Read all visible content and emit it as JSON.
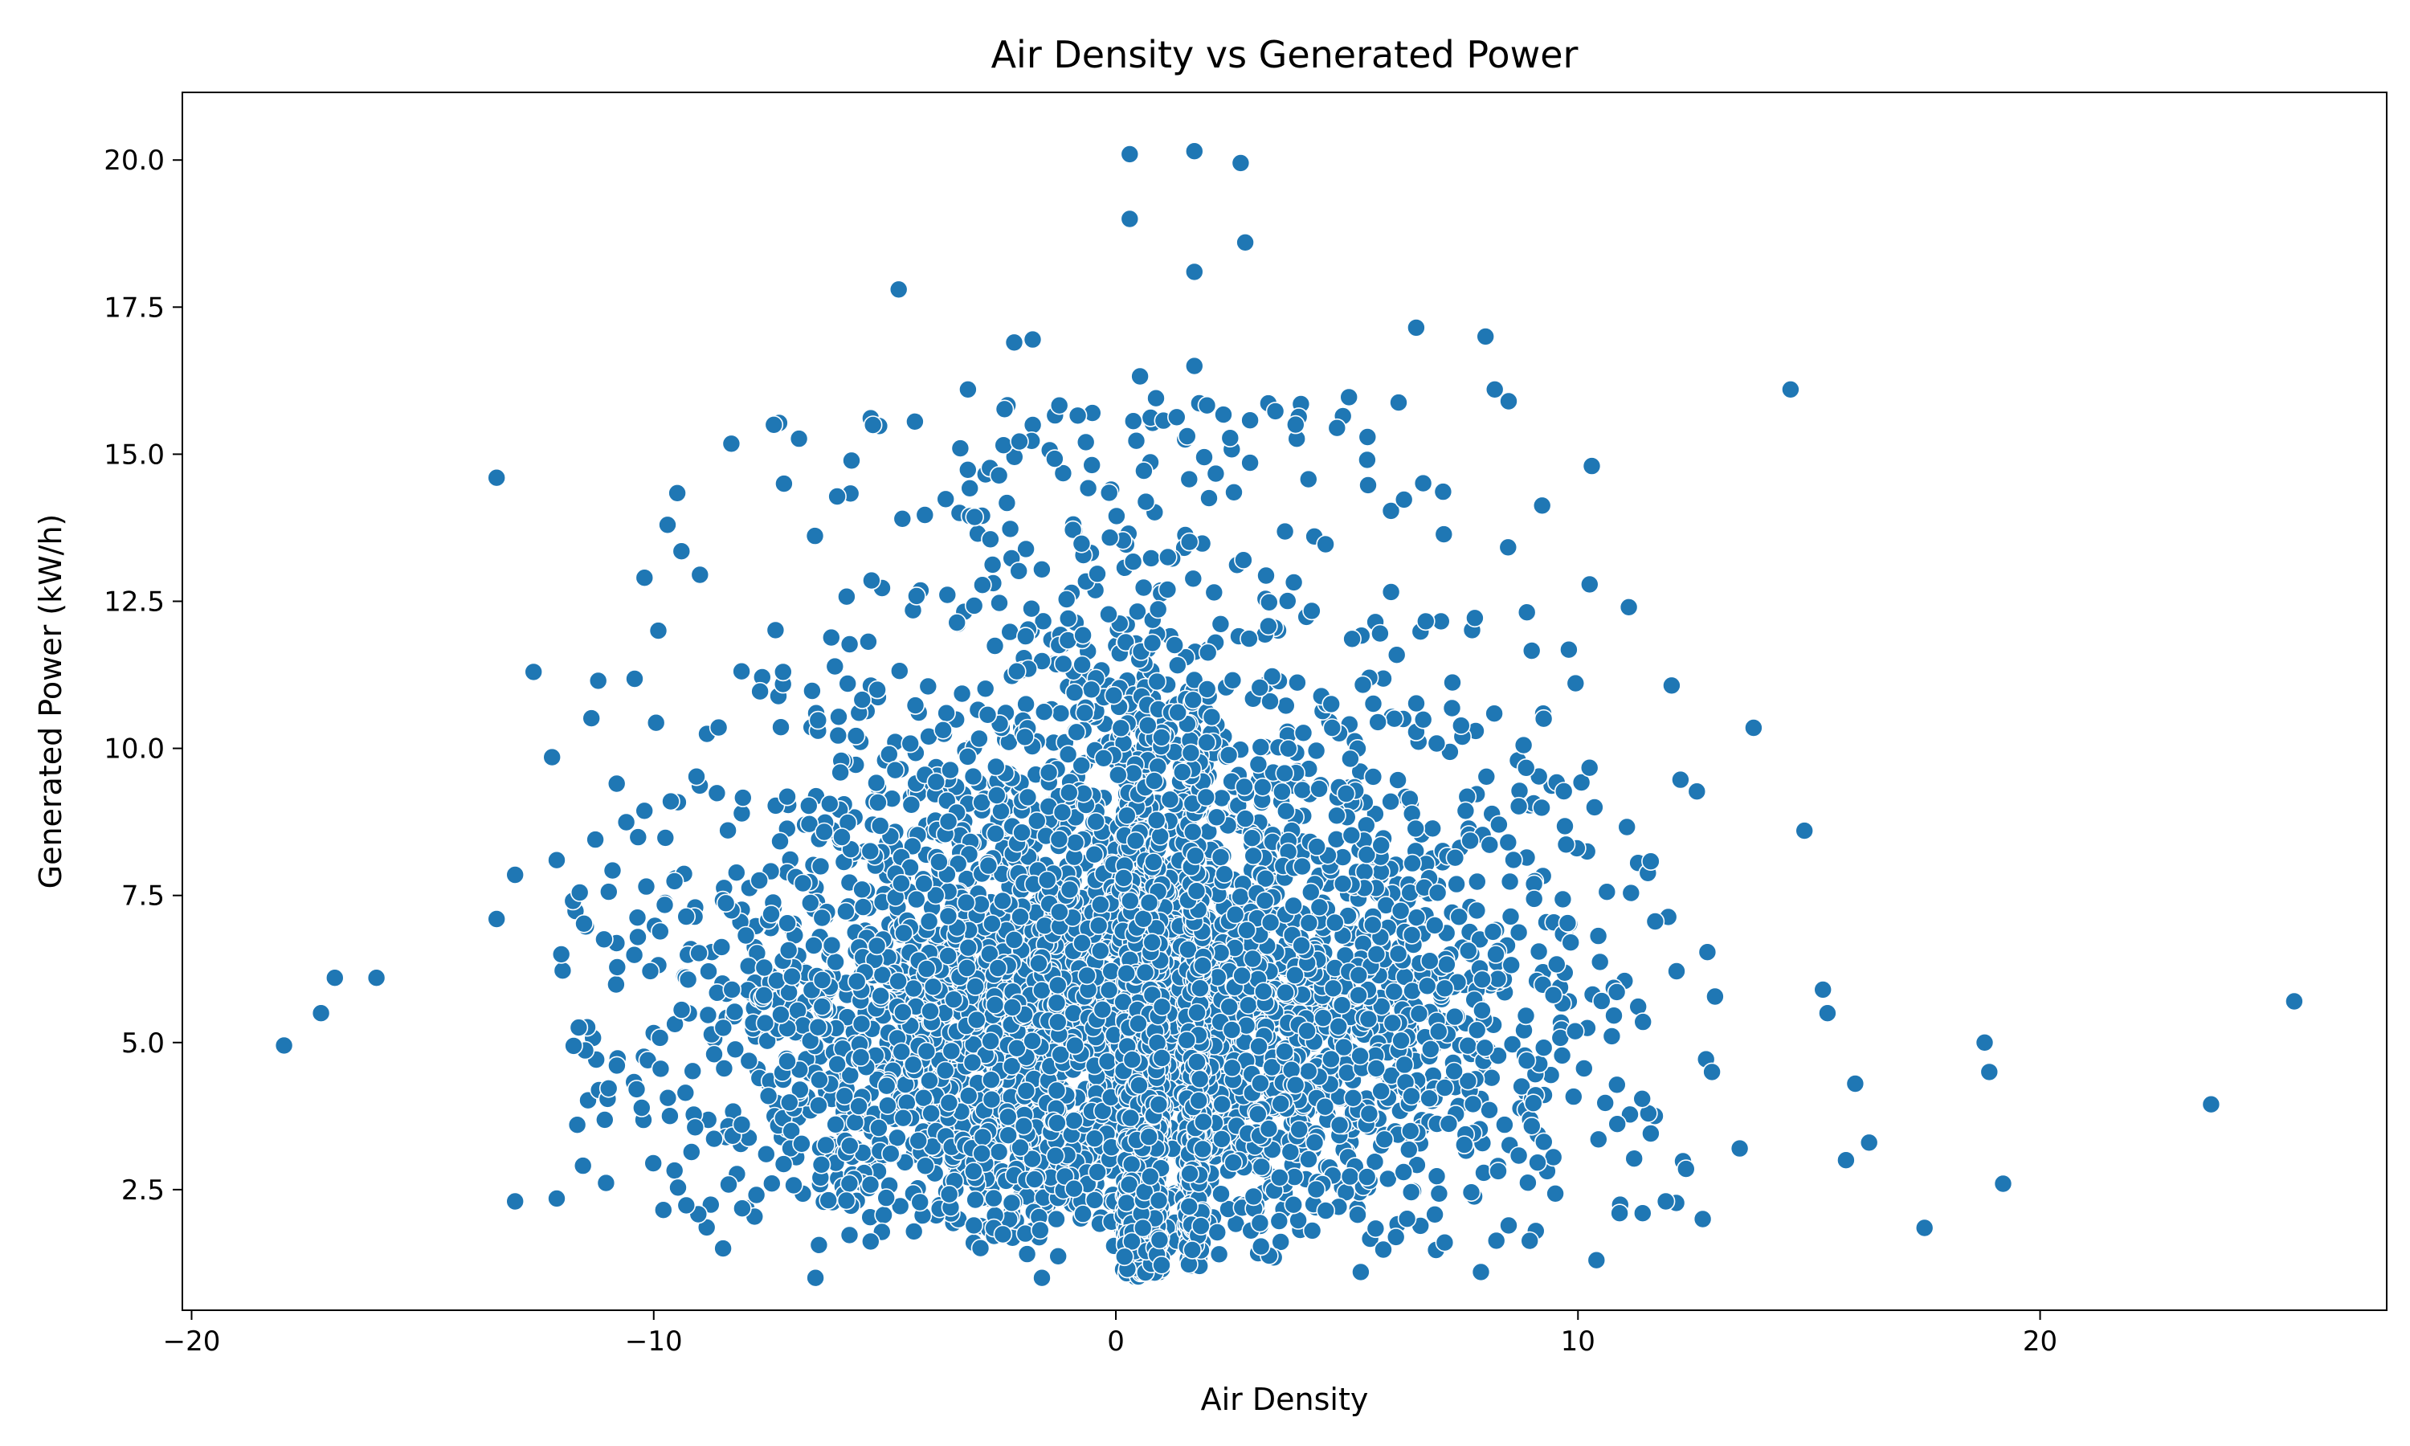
{
  "chart_data": {
    "type": "scatter",
    "title": "Air Density vs Generated Power",
    "xlabel": "Air Density",
    "ylabel": "Generated Power (kW/h)",
    "xlim": [
      -20.2,
      27.5
    ],
    "ylim": [
      0.45,
      21.15
    ],
    "x_ticks": [
      -20,
      -10,
      0,
      10,
      20
    ],
    "x_tick_labels": [
      "−20",
      "−10",
      "0",
      "10",
      "20"
    ],
    "y_ticks": [
      2.5,
      5.0,
      7.5,
      10.0,
      12.5,
      15.0,
      17.5,
      20.0
    ],
    "y_tick_labels": [
      "2.5",
      "5.0",
      "7.5",
      "10.0",
      "12.5",
      "15.0",
      "17.5",
      "20.0"
    ],
    "grid": false,
    "marker_color": "#1f77b4",
    "marker_edge_color": "#ffffff",
    "approx_point_count": 5000,
    "points_x": [
      -18.0,
      -17.2,
      -16.9,
      -16.0,
      -13.4,
      -13.4,
      -13.0,
      -12.6,
      -12.2,
      -12.1,
      -12.0,
      -11.6,
      -11.2,
      -10.8,
      -10.2,
      -9.9,
      -9.7,
      -9.4,
      -9.0,
      -7.4,
      -7.2,
      -4.7,
      -3.2,
      -2.2,
      -1.8,
      0.3,
      0.3,
      1.7,
      1.7,
      2.7,
      2.8,
      1.7,
      6.5,
      8.0,
      8.2,
      8.5,
      10.3,
      11.1,
      13.8,
      14.6,
      14.9,
      15.3,
      15.4,
      16.0,
      16.3,
      15.8,
      17.5,
      18.8,
      18.9,
      19.2,
      23.7,
      25.5,
      12.7,
      11.4,
      11.9,
      10.9,
      13.5,
      12.9,
      -6.5,
      -6.5,
      -1.6,
      7.9,
      5.3,
      10.4,
      -13.0,
      -12.1,
      -8.5
    ],
    "points_y": [
      4.95,
      5.5,
      6.1,
      6.1,
      14.6,
      7.1,
      2.3,
      11.3,
      9.85,
      8.1,
      6.5,
      7.55,
      11.15,
      9.4,
      12.9,
      12.0,
      13.8,
      13.35,
      12.95,
      15.5,
      11.3,
      17.8,
      16.1,
      16.9,
      16.95,
      20.1,
      19.0,
      20.15,
      18.1,
      19.95,
      18.6,
      16.5,
      17.15,
      17.0,
      16.1,
      15.9,
      14.8,
      12.4,
      10.35,
      16.1,
      8.6,
      5.9,
      5.5,
      4.3,
      3.3,
      3.0,
      1.85,
      5.0,
      4.5,
      2.6,
      3.95,
      5.7,
      2.0,
      2.1,
      2.3,
      2.1,
      3.2,
      4.5,
      1.0,
      1.0,
      1.0,
      1.1,
      1.1,
      1.3,
      7.85,
      2.35,
      1.5
    ]
  }
}
